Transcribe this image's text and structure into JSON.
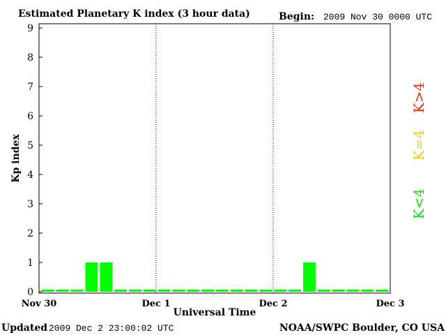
{
  "chart_data": {
    "type": "bar",
    "title": "Estimated Planetary K index (3 hour data)",
    "begin_label": "Begin:",
    "begin_value": "2009 Nov 30 0000 UTC",
    "ylabel": "Kp index",
    "xlabel": "Universal Time",
    "ylim": [
      0,
      9
    ],
    "yticks": [
      0,
      1,
      2,
      3,
      4,
      5,
      6,
      7,
      8,
      9
    ],
    "xlim_days": [
      0,
      3
    ],
    "day_labels": [
      {
        "day": 0,
        "label": "Nov 30"
      },
      {
        "day": 1,
        "label": "Dec 1"
      },
      {
        "day": 2,
        "label": "Dec 2"
      },
      {
        "day": 3,
        "label": "Dec 3"
      }
    ],
    "bar_color": "#00ff00",
    "values": [
      0,
      0,
      0,
      1,
      1,
      0,
      0,
      0,
      0,
      0,
      0,
      0,
      0,
      0,
      0,
      0,
      0,
      0,
      1,
      0,
      0,
      0,
      0,
      0
    ],
    "legend": [
      {
        "text": "K>4",
        "color": "#ff2a00"
      },
      {
        "text": "K=4",
        "color": "#ffcc00"
      },
      {
        "text": "K<4",
        "color": "#00ee00"
      }
    ],
    "updated_label": "Updated",
    "updated_value": "2009 Dec  2 23:00:02 UTC",
    "source": "NOAA/SWPC Boulder, CO USA"
  }
}
